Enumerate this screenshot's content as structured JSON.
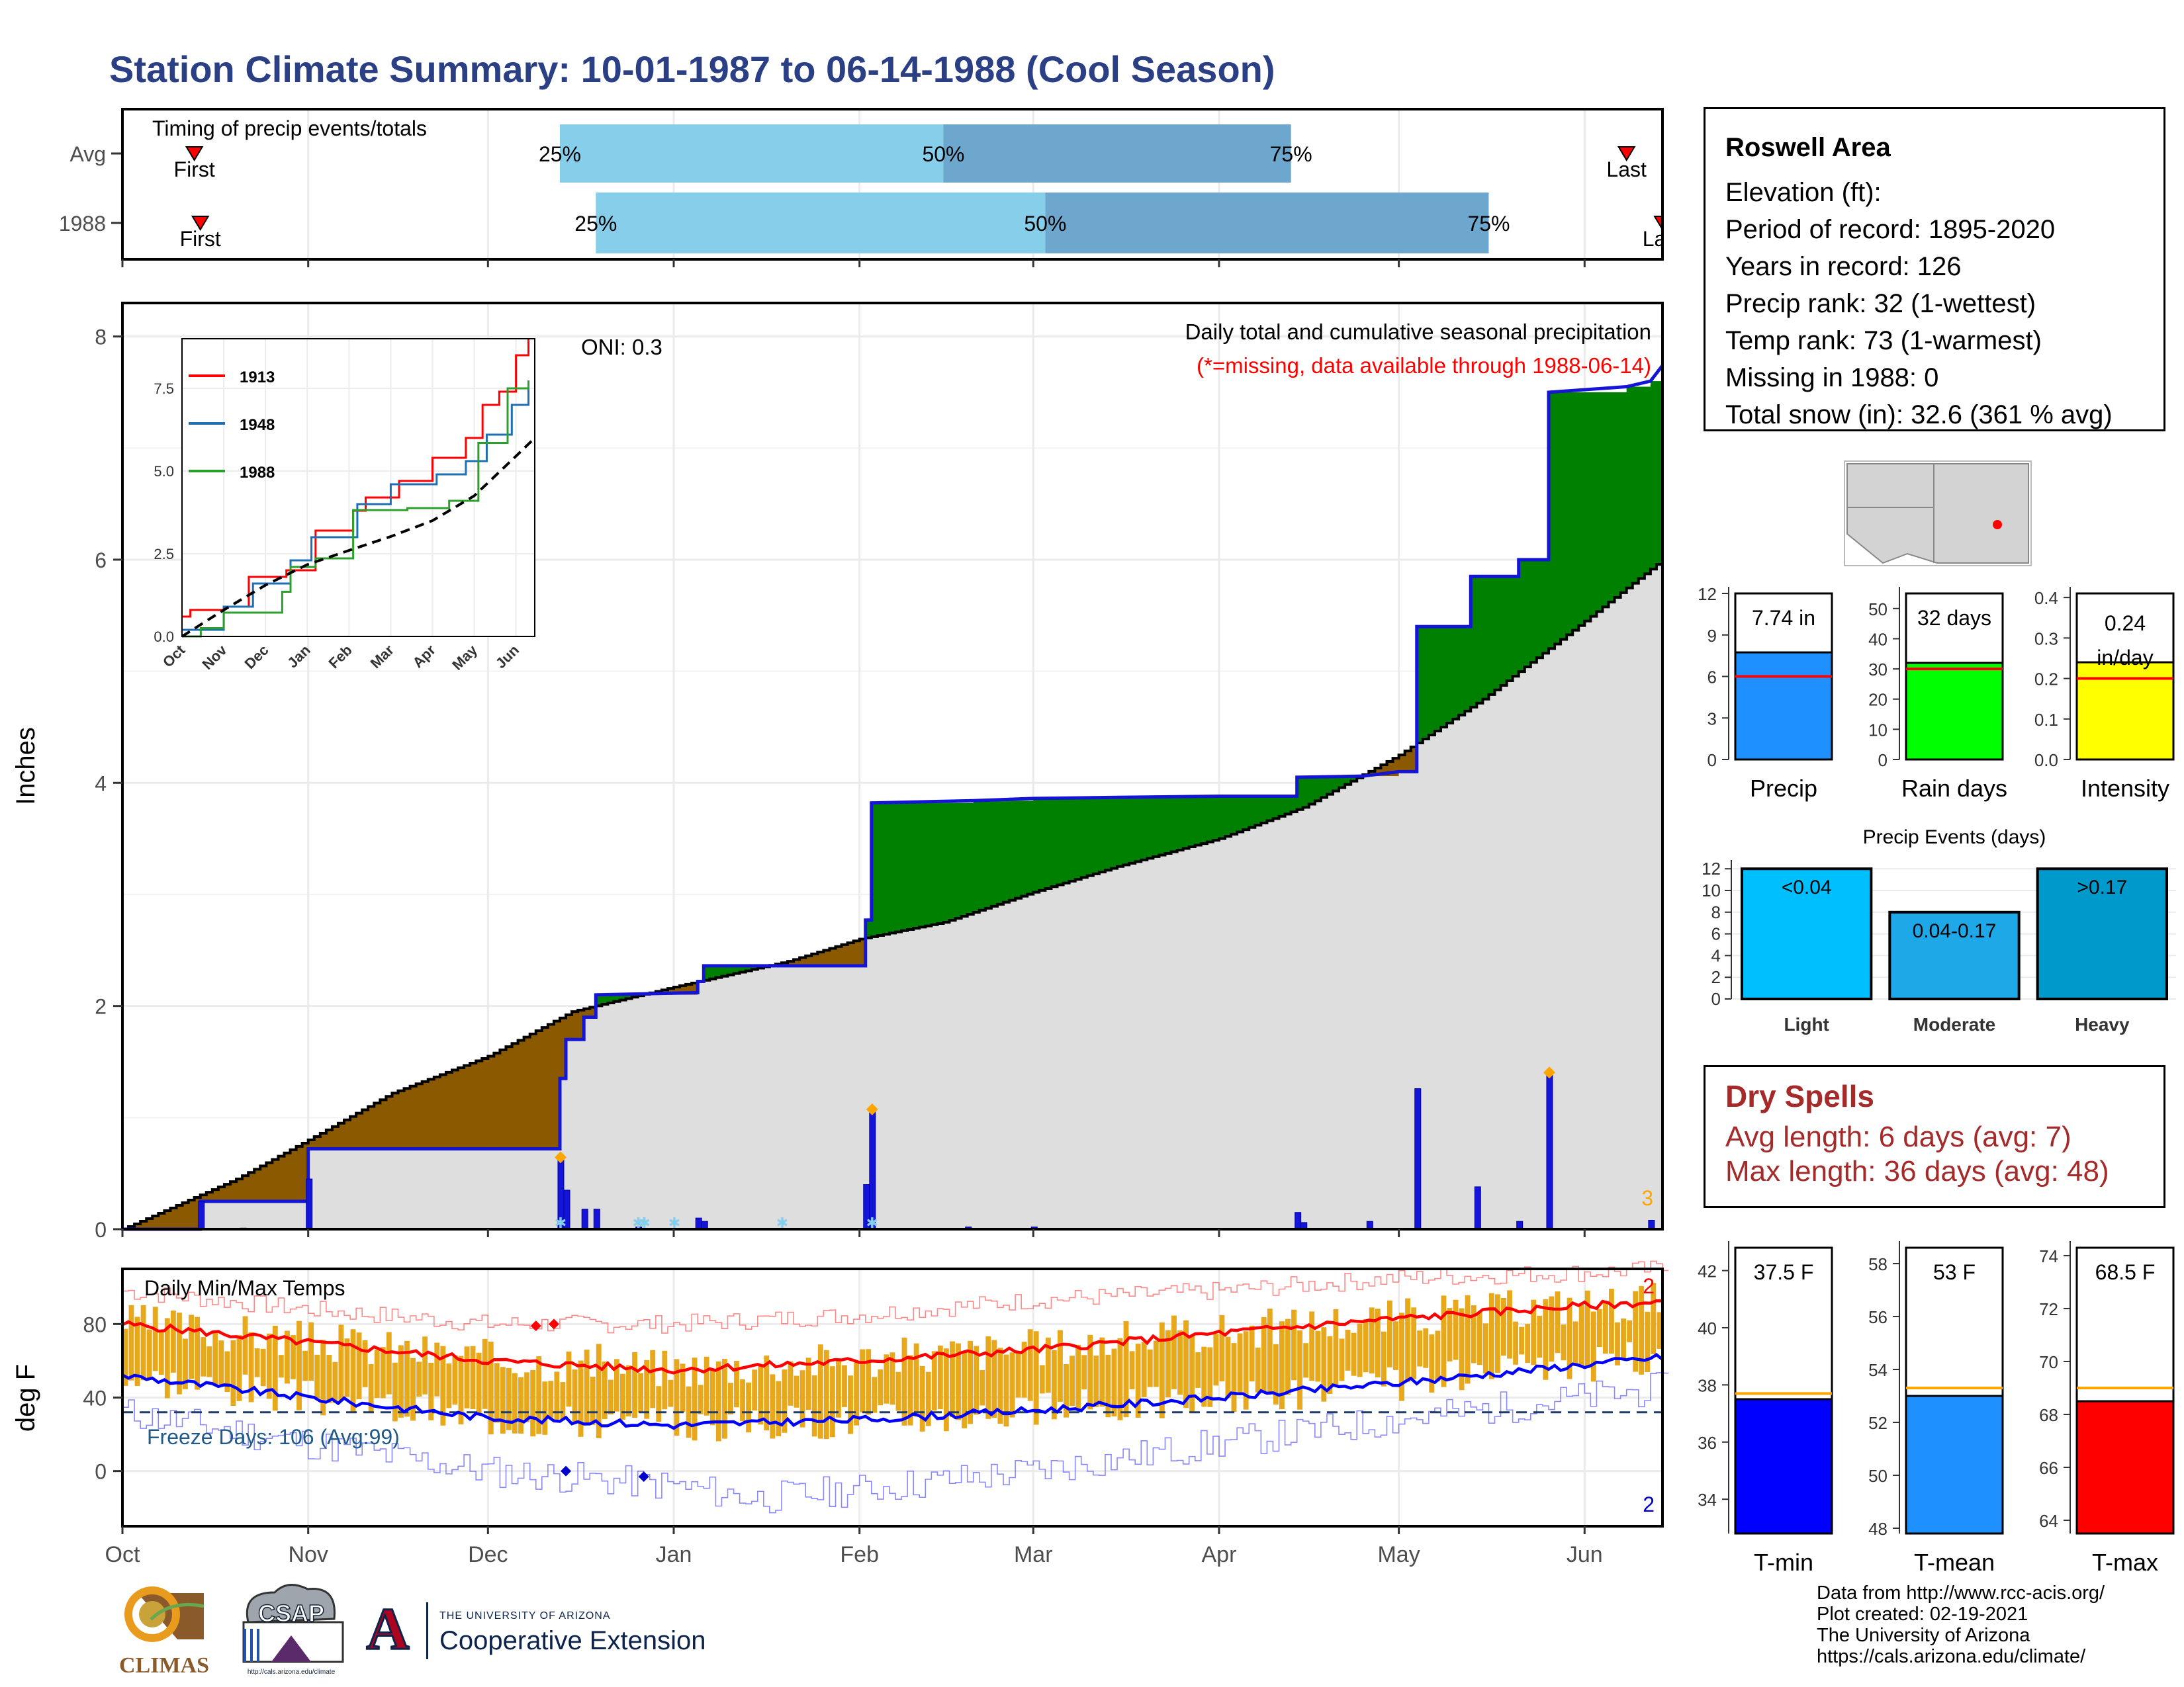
{
  "page": {
    "title": "Station Climate Summary: 10-01-1987 to 06-14-1988 (Cool Season)"
  },
  "station": {
    "name": "Roswell Area",
    "lines": [
      "Elevation (ft):",
      "Period of record: 1895-2020",
      "Years in record: 126",
      "Precip rank: 32 (1-wettest)",
      "Temp rank: 73 (1-warmest)",
      "Missing in 1988: 0",
      "Total snow (in): 32.6 (361 % avg)"
    ]
  },
  "dry_spells": {
    "title": "Dry Spells",
    "avg": "Avg length: 6 days (avg: 7)",
    "max": "Max length: 36 days (avg: 48)"
  },
  "credits": [
    "Data from http://www.rcc-acis.org/",
    "Plot created: 02-19-2021",
    "The University of Arizona",
    "https://cals.arizona.edu/climate/"
  ],
  "logos": {
    "climas": "CLIMAS",
    "csap": "CSAP",
    "csap_url": "http://cals.arizona.edu/climate",
    "ua_top": "THE UNIVERSITY OF ARIZONA",
    "ua_bottom": "Cooperative Extension",
    "ua_mark": "A"
  },
  "colors": {
    "title": "#2b3f84",
    "normal_fill": "#dedede",
    "above": "#008000",
    "below": "#8b5a00",
    "precip_line": "#1515d8",
    "tmax": "#ff0000",
    "tmin": "#0000ff",
    "daily_bar": "#e8a81c",
    "dry_text": "#a52a2a",
    "quartile_light": "#87ceeb",
    "quartile_dark": "#6ea7cd"
  },
  "chart_data": [
    {
      "type": "timeline",
      "title": "Timing of precip events/totals",
      "rows": [
        {
          "label": "Avg",
          "first_date": "1987-10-13",
          "q25": "1987-12-13",
          "q50": "1988-02-15",
          "q75": "1988-04-13",
          "last_date": "1988-06-08",
          "first_label": "First",
          "last_label": "Last",
          "q_labels": [
            "25%",
            "50%",
            "75%"
          ]
        },
        {
          "label": "1988",
          "first_date": "1987-10-14",
          "q25": "1987-12-19",
          "q50": "1988-03-03",
          "q75": "1988-05-16",
          "last_date": "1988-06-14",
          "first_label": "First",
          "last_label": "Last",
          "q_labels": [
            "25%",
            "50%",
            "75%"
          ]
        }
      ]
    },
    {
      "type": "area",
      "title": "Daily total and cumulative seasonal precipitation",
      "subtitle": "(*=missing, data available through 1988-06-14)",
      "oni": "ONI: 0.3",
      "ylabel": "Inches",
      "ylim": [
        0,
        8.3
      ],
      "yticks": [
        0,
        2,
        4,
        6,
        8
      ],
      "xlim": [
        "1987-10-01",
        "1988-06-14"
      ],
      "month_ticks": [
        "Oct",
        "Nov",
        "Dec",
        "Jan",
        "Feb",
        "Mar",
        "Apr",
        "May",
        "Jun"
      ],
      "normal_cumulative": [
        {
          "date": "1987-10-01",
          "v": 0
        },
        {
          "date": "1987-10-20",
          "v": 0.45
        },
        {
          "date": "1987-11-01",
          "v": 0.8
        },
        {
          "date": "1987-11-15",
          "v": 1.22
        },
        {
          "date": "1987-12-01",
          "v": 1.55
        },
        {
          "date": "1987-12-15",
          "v": 1.95
        },
        {
          "date": "1988-01-01",
          "v": 2.17
        },
        {
          "date": "1988-01-20",
          "v": 2.4
        },
        {
          "date": "1988-02-01",
          "v": 2.6
        },
        {
          "date": "1988-02-15",
          "v": 2.75
        },
        {
          "date": "1988-03-01",
          "v": 3.02
        },
        {
          "date": "1988-03-15",
          "v": 3.25
        },
        {
          "date": "1988-04-01",
          "v": 3.5
        },
        {
          "date": "1988-04-15",
          "v": 3.78
        },
        {
          "date": "1988-05-01",
          "v": 4.25
        },
        {
          "date": "1988-05-15",
          "v": 4.75
        },
        {
          "date": "1988-06-01",
          "v": 5.45
        },
        {
          "date": "1988-06-14",
          "v": 6.0
        }
      ],
      "observed_cumulative": [
        {
          "date": "1987-10-01",
          "v": 0
        },
        {
          "date": "1987-10-14",
          "v": 0
        },
        {
          "date": "1987-10-14",
          "v": 0.25
        },
        {
          "date": "1987-11-01",
          "v": 0.25
        },
        {
          "date": "1987-11-01",
          "v": 0.72
        },
        {
          "date": "1987-12-13",
          "v": 0.72
        },
        {
          "date": "1987-12-13",
          "v": 1.35
        },
        {
          "date": "1987-12-14",
          "v": 1.35
        },
        {
          "date": "1987-12-14",
          "v": 1.7
        },
        {
          "date": "1987-12-17",
          "v": 1.7
        },
        {
          "date": "1987-12-17",
          "v": 1.9
        },
        {
          "date": "1987-12-19",
          "v": 1.9
        },
        {
          "date": "1987-12-19",
          "v": 2.1
        },
        {
          "date": "1988-01-05",
          "v": 2.12
        },
        {
          "date": "1988-01-05",
          "v": 2.22
        },
        {
          "date": "1988-01-06",
          "v": 2.22
        },
        {
          "date": "1988-01-06",
          "v": 2.36
        },
        {
          "date": "1988-02-02",
          "v": 2.36
        },
        {
          "date": "1988-02-02",
          "v": 2.77
        },
        {
          "date": "1988-02-03",
          "v": 2.77
        },
        {
          "date": "1988-02-03",
          "v": 3.82
        },
        {
          "date": "1988-02-20",
          "v": 3.84
        },
        {
          "date": "1988-03-01",
          "v": 3.86
        },
        {
          "date": "1988-03-15",
          "v": 3.87
        },
        {
          "date": "1988-04-01",
          "v": 3.88
        },
        {
          "date": "1988-04-14",
          "v": 3.88
        },
        {
          "date": "1988-04-14",
          "v": 4.05
        },
        {
          "date": "1988-04-25",
          "v": 4.06
        },
        {
          "date": "1988-05-01",
          "v": 4.1
        },
        {
          "date": "1988-05-04",
          "v": 4.1
        },
        {
          "date": "1988-05-04",
          "v": 5.4
        },
        {
          "date": "1988-05-13",
          "v": 5.4
        },
        {
          "date": "1988-05-13",
          "v": 5.85
        },
        {
          "date": "1988-05-21",
          "v": 5.85
        },
        {
          "date": "1988-05-21",
          "v": 6.0
        },
        {
          "date": "1988-05-26",
          "v": 6.0
        },
        {
          "date": "1988-05-26",
          "v": 7.5
        },
        {
          "date": "1988-06-08",
          "v": 7.55
        },
        {
          "date": "1988-06-12",
          "v": 7.6
        },
        {
          "date": "1988-06-14",
          "v": 7.74
        }
      ],
      "daily": [
        {
          "date": "1987-10-14",
          "v": 0.25
        },
        {
          "date": "1987-10-21",
          "v": 0.01
        },
        {
          "date": "1987-11-01",
          "v": 0.45
        },
        {
          "date": "1987-12-13",
          "v": 0.62
        },
        {
          "date": "1987-12-14",
          "v": 0.35
        },
        {
          "date": "1987-12-17",
          "v": 0.18
        },
        {
          "date": "1987-12-19",
          "v": 0.18
        },
        {
          "date": "1987-12-26",
          "v": 0.02
        },
        {
          "date": "1988-01-05",
          "v": 0.1
        },
        {
          "date": "1988-01-06",
          "v": 0.07
        },
        {
          "date": "1988-02-02",
          "v": 0.4
        },
        {
          "date": "1988-02-03",
          "v": 1.05
        },
        {
          "date": "1988-02-19",
          "v": 0.02
        },
        {
          "date": "1988-03-01",
          "v": 0.02
        },
        {
          "date": "1988-04-14",
          "v": 0.15
        },
        {
          "date": "1988-04-15",
          "v": 0.06
        },
        {
          "date": "1988-04-26",
          "v": 0.07
        },
        {
          "date": "1988-05-04",
          "v": 1.26
        },
        {
          "date": "1988-05-14",
          "v": 0.38
        },
        {
          "date": "1988-05-21",
          "v": 0.07
        },
        {
          "date": "1988-05-26",
          "v": 1.38
        },
        {
          "date": "1988-06-12",
          "v": 0.08
        }
      ],
      "snow_marks": [
        "1987-12-13",
        "1987-12-26",
        "1987-12-27",
        "1988-01-01",
        "1988-01-19",
        "1988-02-03"
      ],
      "max_marks": [
        "1987-12-13",
        "1988-02-03",
        "1988-05-26"
      ],
      "corner_count": "3",
      "inset": {
        "type": "line",
        "xticks": [
          "Oct",
          "Nov",
          "Dec",
          "Jan",
          "Feb",
          "Mar",
          "Apr",
          "May",
          "Jun"
        ],
        "yticks": [
          "0.0",
          "2.5",
          "5.0",
          "7.5"
        ],
        "ylim": [
          0,
          9
        ],
        "series": [
          {
            "name": "1913",
            "color": "#ff0000",
            "points": [
              [
                0,
                0.6
              ],
              [
                0.2,
                0.8
              ],
              [
                1.0,
                0.9
              ],
              [
                1.6,
                1.8
              ],
              [
                2.5,
                2.0
              ],
              [
                3.2,
                3.2
              ],
              [
                4.1,
                3.8
              ],
              [
                4.4,
                4.2
              ],
              [
                5.2,
                4.7
              ],
              [
                6.0,
                5.4
              ],
              [
                6.8,
                6.0
              ],
              [
                7.2,
                7.0
              ],
              [
                7.6,
                7.4
              ],
              [
                8.0,
                8.5
              ],
              [
                8.3,
                9.0
              ]
            ]
          },
          {
            "name": "1948",
            "color": "#1f6fb4",
            "points": [
              [
                0,
                0.2
              ],
              [
                1.0,
                0.9
              ],
              [
                1.7,
                1.6
              ],
              [
                2.6,
                2.3
              ],
              [
                3.1,
                3.0
              ],
              [
                4.2,
                4.0
              ],
              [
                5.0,
                4.6
              ],
              [
                6.1,
                4.9
              ],
              [
                6.8,
                5.3
              ],
              [
                7.3,
                6.1
              ],
              [
                7.9,
                7.0
              ],
              [
                8.3,
                7.5
              ]
            ]
          },
          {
            "name": "1988",
            "color": "#2ca02c",
            "points": [
              [
                0,
                0
              ],
              [
                0.45,
                0.25
              ],
              [
                1.0,
                0.72
              ],
              [
                2.4,
                1.35
              ],
              [
                2.6,
                2.1
              ],
              [
                3.2,
                2.36
              ],
              [
                4.1,
                3.82
              ],
              [
                5.4,
                3.88
              ],
              [
                6.4,
                4.1
              ],
              [
                7.1,
                5.85
              ],
              [
                7.8,
                7.5
              ],
              [
                8.3,
                7.74
              ]
            ]
          },
          {
            "name": "normal",
            "color": "#000000",
            "dashed": true,
            "points": [
              [
                0,
                0
              ],
              [
                1,
                0.8
              ],
              [
                2,
                1.55
              ],
              [
                3,
                2.17
              ],
              [
                4,
                2.6
              ],
              [
                5,
                3.02
              ],
              [
                6,
                3.5
              ],
              [
                7,
                4.25
              ],
              [
                8,
                5.45
              ],
              [
                8.45,
                6.0
              ]
            ]
          }
        ]
      }
    },
    {
      "type": "line",
      "title": "Daily Min/Max Temps",
      "ylabel": "deg F",
      "ylim": [
        -30,
        110
      ],
      "yticks": [
        0,
        40,
        80
      ],
      "xlim": [
        "1987-10-01",
        "1988-06-14"
      ],
      "month_ticks": [
        "Oct",
        "Nov",
        "Dec",
        "Jan",
        "Feb",
        "Mar",
        "Apr",
        "May",
        "Jun"
      ],
      "freeze_label": "Freeze Days: 106 (Avg:99)",
      "freeze_line": 32,
      "record_high_count": "2",
      "record_low_count": "2",
      "normal_max": [
        {
          "date": "1987-10-01",
          "v": 80
        },
        {
          "date": "1987-11-01",
          "v": 70
        },
        {
          "date": "1987-12-01",
          "v": 60
        },
        {
          "date": "1988-01-01",
          "v": 55
        },
        {
          "date": "1988-02-01",
          "v": 60
        },
        {
          "date": "1988-03-01",
          "v": 66
        },
        {
          "date": "1988-04-01",
          "v": 75
        },
        {
          "date": "1988-05-01",
          "v": 83
        },
        {
          "date": "1988-06-01",
          "v": 90
        },
        {
          "date": "1988-06-14",
          "v": 92
        }
      ],
      "normal_min": [
        {
          "date": "1987-10-01",
          "v": 52
        },
        {
          "date": "1987-11-01",
          "v": 40
        },
        {
          "date": "1987-12-01",
          "v": 29
        },
        {
          "date": "1988-01-01",
          "v": 25
        },
        {
          "date": "1988-02-01",
          "v": 28
        },
        {
          "date": "1988-03-01",
          "v": 33
        },
        {
          "date": "1988-04-01",
          "v": 40
        },
        {
          "date": "1988-05-01",
          "v": 48
        },
        {
          "date": "1988-06-01",
          "v": 58
        },
        {
          "date": "1988-06-14",
          "v": 62
        }
      ],
      "record_max": [
        {
          "date": "1987-10-01",
          "v": 98
        },
        {
          "date": "1987-11-01",
          "v": 88
        },
        {
          "date": "1987-12-01",
          "v": 80
        },
        {
          "date": "1988-01-01",
          "v": 80
        },
        {
          "date": "1988-02-01",
          "v": 85
        },
        {
          "date": "1988-03-01",
          "v": 93
        },
        {
          "date": "1988-04-01",
          "v": 98
        },
        {
          "date": "1988-05-01",
          "v": 105
        },
        {
          "date": "1988-06-01",
          "v": 108
        },
        {
          "date": "1988-06-14",
          "v": 110
        }
      ],
      "record_min": [
        {
          "date": "1987-10-01",
          "v": 32
        },
        {
          "date": "1987-11-01",
          "v": 15
        },
        {
          "date": "1987-12-01",
          "v": 0
        },
        {
          "date": "1988-01-01",
          "v": -8
        },
        {
          "date": "1988-01-15",
          "v": -15
        },
        {
          "date": "1988-02-01",
          "v": -10
        },
        {
          "date": "1988-03-01",
          "v": 0
        },
        {
          "date": "1988-04-01",
          "v": 15
        },
        {
          "date": "1988-05-01",
          "v": 28
        },
        {
          "date": "1988-06-01",
          "v": 40
        },
        {
          "date": "1988-06-14",
          "v": 45
        }
      ],
      "record_high_marks": [
        {
          "date": "1987-12-09",
          "v": 79
        },
        {
          "date": "1987-12-12",
          "v": 80
        }
      ],
      "record_low_marks": [
        {
          "date": "1987-12-14",
          "v": 0
        },
        {
          "date": "1987-12-27",
          "v": -3
        }
      ]
    },
    {
      "type": "bar",
      "label": "Precip",
      "value": 7.74,
      "value_label": "7.74 in",
      "avg": 6.0,
      "ylim": [
        0,
        12
      ],
      "yticks": [
        0,
        3,
        6,
        9,
        12
      ],
      "color": "#1e90ff"
    },
    {
      "type": "bar",
      "label": "Rain days",
      "value": 32,
      "value_label": "32 days",
      "avg": 30,
      "ylim": [
        0,
        55
      ],
      "yticks": [
        0,
        10,
        20,
        30,
        40,
        50
      ],
      "color": "#00ff00"
    },
    {
      "type": "bar",
      "label": "Intensity",
      "value": 0.24,
      "value_label": "0.24 in/day",
      "avg": 0.2,
      "ylim": [
        0,
        0.41
      ],
      "yticks": [
        "0.0",
        "0.1",
        "0.2",
        "0.3",
        "0.4"
      ],
      "color": "#ffff00"
    },
    {
      "type": "bar",
      "title": "Precip Events (days)",
      "categories": [
        "Light",
        "Moderate",
        "Heavy"
      ],
      "values": [
        12,
        8,
        12
      ],
      "bar_labels": [
        "<0.04",
        "0.04-0.17",
        ">0.17"
      ],
      "colors": [
        "#00bfff",
        "#1ea8e8",
        "#0099cc"
      ],
      "ylim": [
        0,
        12.5
      ],
      "yticks": [
        0,
        2,
        4,
        6,
        8,
        10,
        12
      ]
    },
    {
      "type": "bar",
      "label": "T-min",
      "value": 37.5,
      "value_label": "37.5 F",
      "avg": 37.7,
      "ylim": [
        32.8,
        42.8
      ],
      "yticks": [
        34,
        36,
        38,
        40,
        42
      ],
      "color": "#0000ff"
    },
    {
      "type": "bar",
      "label": "T-mean",
      "value": 53,
      "value_label": "53 F",
      "avg": 53.3,
      "ylim": [
        47.8,
        58.6
      ],
      "yticks": [
        48,
        50,
        52,
        54,
        56,
        58
      ],
      "color": "#1e90ff"
    },
    {
      "type": "bar",
      "label": "T-max",
      "value": 68.5,
      "value_label": "68.5 F",
      "avg": 69,
      "ylim": [
        63.5,
        74.3
      ],
      "yticks": [
        64,
        66,
        68,
        70,
        72,
        74
      ],
      "color": "#ff0000"
    },
    {
      "type": "map",
      "marker": "station location"
    }
  ]
}
